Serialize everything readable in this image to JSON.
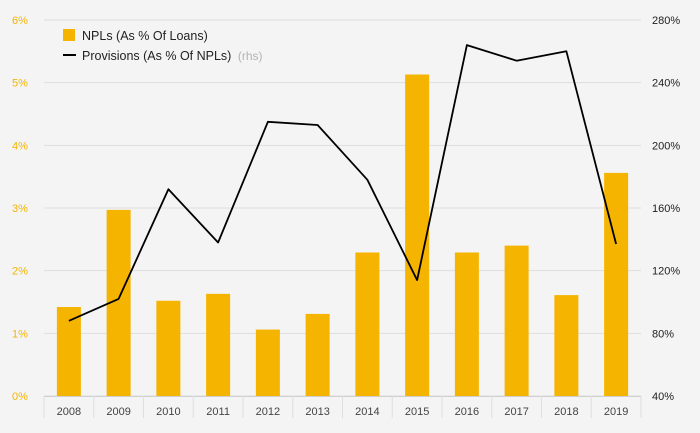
{
  "chart_data": {
    "type": "bar+line",
    "categories": [
      "2008",
      "2009",
      "2010",
      "2011",
      "2012",
      "2013",
      "2014",
      "2015",
      "2016",
      "2017",
      "2018",
      "2019"
    ],
    "series": [
      {
        "name": "NPLs (As % Of Loans)",
        "type": "bar",
        "axis": "left",
        "color": "#f5b400",
        "values": [
          1.42,
          2.97,
          1.52,
          1.63,
          1.06,
          1.31,
          2.29,
          5.13,
          2.29,
          2.4,
          1.61,
          3.56
        ]
      },
      {
        "name": "Provisions (As % Of NPLs)",
        "name_suffix": "(rhs)",
        "type": "line",
        "axis": "right",
        "color": "#000000",
        "values": [
          88,
          102,
          172,
          138,
          215,
          213,
          178,
          114,
          264,
          254,
          260,
          137
        ]
      }
    ],
    "y_left": {
      "min": 0,
      "max": 6,
      "ticks": [
        "0%",
        "1%",
        "2%",
        "3%",
        "4%",
        "5%",
        "6%"
      ]
    },
    "y_right": {
      "min": 40,
      "max": 280,
      "ticks": [
        "40%",
        "80%",
        "120%",
        "160%",
        "200%",
        "240%",
        "280%"
      ]
    },
    "grid": true,
    "legend": "top-left"
  }
}
